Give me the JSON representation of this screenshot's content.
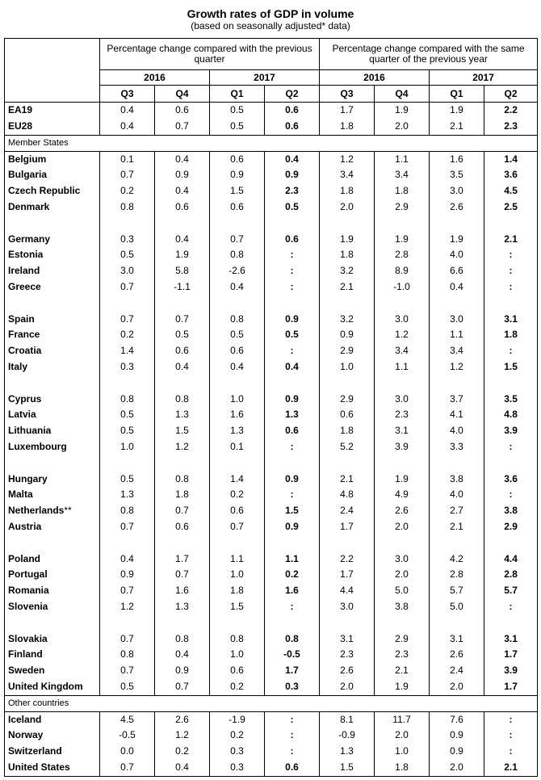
{
  "title": "Growth rates of GDP in volume",
  "subtitle": "(based on seasonally adjusted* data)",
  "header": {
    "group1": "Percentage change compared with the previous quarter",
    "group2": "Percentage change compared with the same quarter of the previous year",
    "years": [
      "2016",
      "2017",
      "2016",
      "2017"
    ],
    "quarters": [
      "Q3",
      "Q4",
      "Q1",
      "Q2",
      "Q3",
      "Q4",
      "Q1",
      "Q2"
    ]
  },
  "aggregates": [
    {
      "name": "EA19",
      "values": [
        "0.4",
        "0.6",
        "0.5",
        "0.6",
        "1.7",
        "1.9",
        "1.9",
        "2.2"
      ]
    },
    {
      "name": "EU28",
      "values": [
        "0.4",
        "0.7",
        "0.5",
        "0.6",
        "1.8",
        "2.0",
        "2.1",
        "2.3"
      ]
    }
  ],
  "member_states_label": "Member States",
  "member_groups": [
    [
      {
        "name": "Belgium",
        "values": [
          "0.1",
          "0.4",
          "0.6",
          "0.4",
          "1.2",
          "1.1",
          "1.6",
          "1.4"
        ]
      },
      {
        "name": "Bulgaria",
        "values": [
          "0.7",
          "0.9",
          "0.9",
          "0.9",
          "3.4",
          "3.4",
          "3.5",
          "3.6"
        ]
      },
      {
        "name": "Czech Republic",
        "values": [
          "0.2",
          "0.4",
          "1.5",
          "2.3",
          "1.8",
          "1.8",
          "3.0",
          "4.5"
        ]
      },
      {
        "name": "Denmark",
        "values": [
          "0.8",
          "0.6",
          "0.6",
          "0.5",
          "2.0",
          "2.9",
          "2.6",
          "2.5"
        ]
      }
    ],
    [
      {
        "name": "Germany",
        "values": [
          "0.3",
          "0.4",
          "0.7",
          "0.6",
          "1.9",
          "1.9",
          "1.9",
          "2.1"
        ]
      },
      {
        "name": "Estonia",
        "values": [
          "0.5",
          "1.9",
          "0.8",
          ":",
          "1.8",
          "2.8",
          "4.0",
          ":"
        ]
      },
      {
        "name": "Ireland",
        "values": [
          "3.0",
          "5.8",
          "-2.6",
          ":",
          "3.2",
          "8.9",
          "6.6",
          ":"
        ]
      },
      {
        "name": "Greece",
        "values": [
          "0.7",
          "-1.1",
          "0.4",
          ":",
          "2.1",
          "-1.0",
          "0.4",
          ":"
        ]
      }
    ],
    [
      {
        "name": "Spain",
        "values": [
          "0.7",
          "0.7",
          "0.8",
          "0.9",
          "3.2",
          "3.0",
          "3.0",
          "3.1"
        ]
      },
      {
        "name": "France",
        "values": [
          "0.2",
          "0.5",
          "0.5",
          "0.5",
          "0.9",
          "1.2",
          "1.1",
          "1.8"
        ]
      },
      {
        "name": "Croatia",
        "values": [
          "1.4",
          "0.6",
          "0.6",
          ":",
          "2.9",
          "3.4",
          "3.4",
          ":"
        ]
      },
      {
        "name": "Italy",
        "values": [
          "0.3",
          "0.4",
          "0.4",
          "0.4",
          "1.0",
          "1.1",
          "1.2",
          "1.5"
        ]
      }
    ],
    [
      {
        "name": "Cyprus",
        "values": [
          "0.8",
          "0.8",
          "1.0",
          "0.9",
          "2.9",
          "3.0",
          "3.7",
          "3.5"
        ]
      },
      {
        "name": "Latvia",
        "values": [
          "0.5",
          "1.3",
          "1.6",
          "1.3",
          "0.6",
          "2.3",
          "4.1",
          "4.8"
        ]
      },
      {
        "name": "Lithuania",
        "values": [
          "0.5",
          "1.5",
          "1.3",
          "0.6",
          "1.8",
          "3.1",
          "4.0",
          "3.9"
        ]
      },
      {
        "name": "Luxembourg",
        "values": [
          "1.0",
          "1.2",
          "0.1",
          ":",
          "5.2",
          "3.9",
          "3.3",
          ":"
        ]
      }
    ],
    [
      {
        "name": "Hungary",
        "values": [
          "0.5",
          "0.8",
          "1.4",
          "0.9",
          "2.1",
          "1.9",
          "3.8",
          "3.6"
        ]
      },
      {
        "name": "Malta",
        "values": [
          "1.3",
          "1.8",
          "0.2",
          ":",
          "4.8",
          "4.9",
          "4.0",
          ":"
        ]
      },
      {
        "name": "Netherlands",
        "note": "**",
        "values": [
          "0.8",
          "0.7",
          "0.6",
          "1.5",
          "2.4",
          "2.6",
          "2.7",
          "3.8"
        ]
      },
      {
        "name": "Austria",
        "values": [
          "0.7",
          "0.6",
          "0.7",
          "0.9",
          "1.7",
          "2.0",
          "2.1",
          "2.9"
        ]
      }
    ],
    [
      {
        "name": "Poland",
        "values": [
          "0.4",
          "1.7",
          "1.1",
          "1.1",
          "2.2",
          "3.0",
          "4.2",
          "4.4"
        ]
      },
      {
        "name": "Portugal",
        "values": [
          "0.9",
          "0.7",
          "1.0",
          "0.2",
          "1.7",
          "2.0",
          "2.8",
          "2.8"
        ]
      },
      {
        "name": "Romania",
        "values": [
          "0.7",
          "1.6",
          "1.8",
          "1.6",
          "4.4",
          "5.0",
          "5.7",
          "5.7"
        ]
      },
      {
        "name": "Slovenia",
        "values": [
          "1.2",
          "1.3",
          "1.5",
          ":",
          "3.0",
          "3.8",
          "5.0",
          ":"
        ]
      }
    ],
    [
      {
        "name": "Slovakia",
        "values": [
          "0.7",
          "0.8",
          "0.8",
          "0.8",
          "3.1",
          "2.9",
          "3.1",
          "3.1"
        ]
      },
      {
        "name": "Finland",
        "values": [
          "0.8",
          "0.4",
          "1.0",
          "-0.5",
          "2.3",
          "2.3",
          "2.6",
          "1.7"
        ]
      },
      {
        "name": "Sweden",
        "values": [
          "0.7",
          "0.9",
          "0.6",
          "1.7",
          "2.6",
          "2.1",
          "2.4",
          "3.9"
        ]
      },
      {
        "name": "United Kingdom",
        "values": [
          "0.5",
          "0.7",
          "0.2",
          "0.3",
          "2.0",
          "1.9",
          "2.0",
          "1.7"
        ]
      }
    ]
  ],
  "other_countries_label": "Other countries",
  "other_countries": [
    {
      "name": "Iceland",
      "values": [
        "4.5",
        "2.6",
        "-1.9",
        ":",
        "8.1",
        "11.7",
        "7.6",
        ":"
      ]
    },
    {
      "name": "Norway",
      "values": [
        "-0.5",
        "1.2",
        "0.2",
        ":",
        "-0.9",
        "2.0",
        "0.9",
        ":"
      ]
    },
    {
      "name": "Switzerland",
      "values": [
        "0.0",
        "0.2",
        "0.3",
        ":",
        "1.3",
        "1.0",
        "0.9",
        ":"
      ]
    },
    {
      "name": "United States",
      "values": [
        "0.7",
        "0.4",
        "0.3",
        "0.6",
        "1.5",
        "1.8",
        "2.0",
        "2.1"
      ]
    }
  ]
}
